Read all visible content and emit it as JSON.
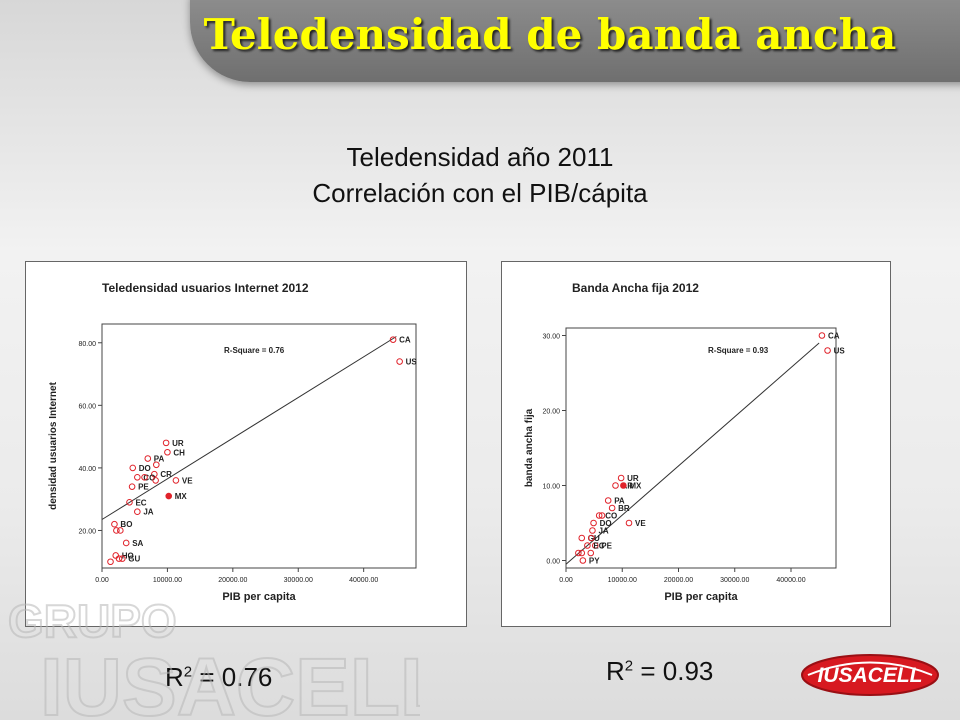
{
  "title": "Teledensidad de banda ancha",
  "subtitle_line1": "Teledensidad año 2011",
  "subtitle_line2": "Correlación con el PIB/cápita",
  "r_squared_left": {
    "base": "R",
    "exp": "2",
    "rest": " = 0.76"
  },
  "r_squared_right": {
    "base": "R",
    "exp": "2",
    "rest": " = 0.93"
  },
  "watermark_text": [
    "GRUPO",
    "IUSACELL"
  ],
  "logo_text": "IUSACELL",
  "colors": {
    "marker": "#e0232b",
    "accent_title": "#ffff00",
    "banner": "#7a7a7a"
  },
  "chart_data": [
    {
      "type": "scatter",
      "title": "Teledensidad usuarios Internet 2012",
      "xlabel": "PIB per capita",
      "ylabel": "densidad usuarios Internet",
      "annotation": "R-Square = 0.76",
      "xlim": [
        0,
        48000
      ],
      "ylim": [
        8,
        86
      ],
      "xticks": [
        0,
        10000,
        20000,
        30000,
        40000
      ],
      "xtick_labels": [
        "0.00",
        "10000.00",
        "20000.00",
        "30000.00",
        "40000.00"
      ],
      "yticks": [
        20,
        40,
        60,
        80
      ],
      "ytick_labels": [
        "20.00",
        "40.00",
        "60.00",
        "80.00"
      ],
      "fit_line": [
        [
          0,
          23.5
        ],
        [
          45000,
          82
        ]
      ],
      "points": [
        {
          "label": "CA",
          "x": 44500,
          "y": 81
        },
        {
          "label": "US",
          "x": 45500,
          "y": 74
        },
        {
          "label": "UR",
          "x": 9800,
          "y": 48
        },
        {
          "label": "PA",
          "x": 7000,
          "y": 43
        },
        {
          "label": "CH",
          "x": 10000,
          "y": 45
        },
        {
          "label": "DO",
          "x": 4700,
          "y": 40
        },
        {
          "label": "",
          "x": 8300,
          "y": 41
        },
        {
          "label": "CR",
          "x": 8000,
          "y": 38
        },
        {
          "label": "CO",
          "x": 5400,
          "y": 37
        },
        {
          "label": "",
          "x": 6500,
          "y": 37
        },
        {
          "label": "VE",
          "x": 11300,
          "y": 36
        },
        {
          "label": "",
          "x": 8200,
          "y": 36
        },
        {
          "label": "PE",
          "x": 4600,
          "y": 34
        },
        {
          "label": "MX",
          "x": 10200,
          "y": 31,
          "highlight": true
        },
        {
          "label": "EC",
          "x": 4200,
          "y": 29
        },
        {
          "label": "JA",
          "x": 5400,
          "y": 26
        },
        {
          "label": "BO",
          "x": 1900,
          "y": 22
        },
        {
          "label": "",
          "x": 2200,
          "y": 20
        },
        {
          "label": "",
          "x": 2800,
          "y": 20
        },
        {
          "label": "SA",
          "x": 3700,
          "y": 16
        },
        {
          "label": "HO",
          "x": 2100,
          "y": 12
        },
        {
          "label": "GU",
          "x": 3100,
          "y": 11
        },
        {
          "label": "",
          "x": 1300,
          "y": 10
        },
        {
          "label": "",
          "x": 2600,
          "y": 11
        }
      ]
    },
    {
      "type": "scatter",
      "title": "Banda Ancha fija 2012",
      "xlabel": "PIB per capita",
      "ylabel": "banda ancha fija",
      "annotation": "R-Square = 0.93",
      "xlim": [
        0,
        48000
      ],
      "ylim": [
        -1,
        31
      ],
      "xticks": [
        0,
        10000,
        20000,
        30000,
        40000
      ],
      "xtick_labels": [
        "0.00",
        "10000.00",
        "20000.00",
        "30000.00",
        "40000.00"
      ],
      "yticks": [
        0,
        10,
        20,
        30
      ],
      "ytick_labels": [
        "0.00",
        "10.00",
        "20.00",
        "30.00"
      ],
      "fit_line": [
        [
          0,
          -0.5
        ],
        [
          45000,
          29
        ]
      ],
      "points": [
        {
          "label": "CA",
          "x": 45500,
          "y": 30
        },
        {
          "label": "US",
          "x": 46500,
          "y": 28
        },
        {
          "label": "UR",
          "x": 9800,
          "y": 11
        },
        {
          "label": "AR",
          "x": 8800,
          "y": 10
        },
        {
          "label": "MX",
          "x": 10200,
          "y": 10,
          "highlight": true
        },
        {
          "label": "PA",
          "x": 7500,
          "y": 8
        },
        {
          "label": "BR",
          "x": 8200,
          "y": 7
        },
        {
          "label": "CO",
          "x": 5900,
          "y": 6
        },
        {
          "label": "",
          "x": 6400,
          "y": 6
        },
        {
          "label": "DO",
          "x": 4900,
          "y": 5
        },
        {
          "label": "JA",
          "x": 4700,
          "y": 4
        },
        {
          "label": "VE",
          "x": 11200,
          "y": 5
        },
        {
          "label": "GU",
          "x": 2800,
          "y": 3
        },
        {
          "label": "",
          "x": 4500,
          "y": 3
        },
        {
          "label": "PE",
          "x": 5200,
          "y": 2
        },
        {
          "label": "EC",
          "x": 3800,
          "y": 2
        },
        {
          "label": "",
          "x": 2200,
          "y": 1
        },
        {
          "label": "",
          "x": 2800,
          "y": 1
        },
        {
          "label": "",
          "x": 4400,
          "y": 1
        },
        {
          "label": "PY",
          "x": 3000,
          "y": 0
        }
      ]
    }
  ]
}
